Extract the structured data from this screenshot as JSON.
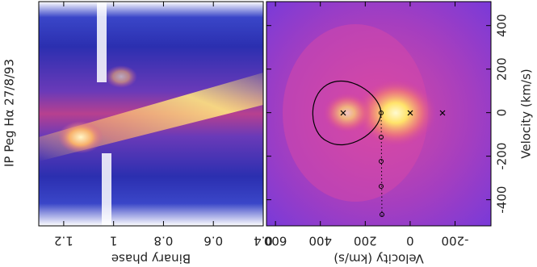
{
  "chart_data": [
    {
      "type": "trailed-spectrum",
      "title": "IP Peg Hα 27/8/93",
      "xlabel": "Binary phase",
      "xlim": [
        1.3,
        0.4
      ],
      "xticks": [
        1.2,
        1,
        0.8,
        0.6,
        0.4
      ]
    },
    {
      "type": "doppler-map",
      "xlabel": "Velocity (km/s)",
      "ylabel": "Velocity (km/s)",
      "xlim": [
        640,
        -360
      ],
      "xticks": [
        600,
        400,
        200,
        0,
        -200
      ],
      "ylim": [
        -520,
        510
      ],
      "yticks": [
        -400,
        -200,
        0,
        200,
        400
      ]
    }
  ]
}
